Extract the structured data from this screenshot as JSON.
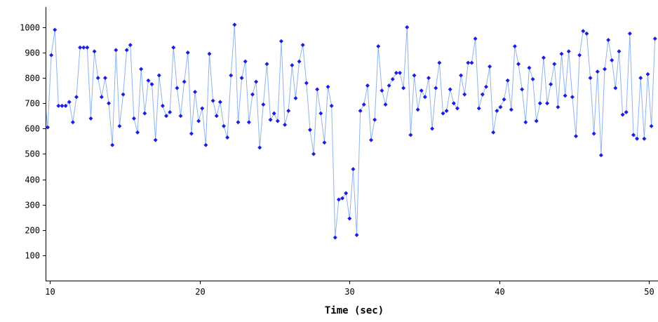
{
  "chart_data": {
    "type": "line",
    "xlabel": "Time (sec)",
    "x": [
      9.6,
      9.84,
      10.08,
      10.32,
      10.56,
      10.8,
      11.04,
      11.28,
      11.52,
      11.76,
      12.0,
      12.24,
      12.48,
      12.72,
      12.96,
      13.2,
      13.44,
      13.68,
      13.92,
      14.16,
      14.4,
      14.64,
      14.88,
      15.12,
      15.36,
      15.6,
      15.84,
      16.08,
      16.32,
      16.56,
      16.8,
      17.04,
      17.28,
      17.52,
      17.76,
      18.0,
      18.24,
      18.48,
      18.72,
      18.96,
      19.2,
      19.44,
      19.68,
      19.92,
      20.16,
      20.4,
      20.64,
      20.88,
      21.12,
      21.36,
      21.6,
      21.84,
      22.08,
      22.32,
      22.56,
      22.8,
      23.04,
      23.28,
      23.52,
      23.76,
      24.0,
      24.24,
      24.48,
      24.72,
      24.96,
      25.2,
      25.44,
      25.68,
      25.92,
      26.16,
      26.4,
      26.64,
      26.88,
      27.12,
      27.36,
      27.6,
      27.84,
      28.08,
      28.32,
      28.56,
      28.8,
      29.04,
      29.28,
      29.52,
      29.76,
      30.0,
      30.24,
      30.48,
      30.72,
      30.96,
      31.2,
      31.44,
      31.68,
      31.92,
      32.16,
      32.4,
      32.64,
      32.88,
      33.12,
      33.36,
      33.6,
      33.84,
      34.08,
      34.32,
      34.56,
      34.8,
      35.04,
      35.28,
      35.52,
      35.76,
      36.0,
      36.24,
      36.48,
      36.72,
      36.96,
      37.2,
      37.44,
      37.68,
      37.92,
      38.16,
      38.4,
      38.64,
      38.88,
      39.12,
      39.36,
      39.6,
      39.84,
      40.08,
      40.32,
      40.56,
      40.8,
      41.04,
      41.28,
      41.52,
      41.76,
      42.0,
      42.24,
      42.48,
      42.72,
      42.96,
      43.2,
      43.44,
      43.68,
      43.92,
      44.16,
      44.4,
      44.64,
      44.88,
      45.12,
      45.36,
      45.6,
      45.84,
      46.08,
      46.32,
      46.56,
      46.8,
      47.04,
      47.28,
      47.52,
      47.76,
      48.0,
      48.24,
      48.48,
      48.72,
      48.96,
      49.2,
      49.44,
      49.68,
      49.92,
      50.16,
      50.4
    ],
    "series": [
      {
        "color": "#8fb4ec",
        "marker_color": "#1c1ce8",
        "values": [
          740,
          605,
          890,
          990,
          690,
          690,
          690,
          705,
          625,
          725,
          920,
          920,
          920,
          640,
          905,
          800,
          725,
          800,
          700,
          535,
          910,
          610,
          735,
          910,
          930,
          640,
          585,
          835,
          660,
          790,
          775,
          555,
          810,
          690,
          650,
          665,
          920,
          760,
          650,
          785,
          900,
          580,
          745,
          630,
          680,
          535,
          895,
          710,
          650,
          705,
          610,
          565,
          810,
          1010,
          625,
          800,
          865,
          625,
          735,
          785,
          525,
          695,
          855,
          635,
          660,
          630,
          945,
          615,
          670,
          850,
          720,
          865,
          930,
          780,
          595,
          500,
          755,
          660,
          545,
          765,
          690,
          170,
          320,
          325,
          345,
          245,
          440,
          180,
          670,
          695,
          770,
          555,
          635,
          925,
          750,
          695,
          770,
          795,
          820,
          820,
          760,
          1000,
          575,
          810,
          675,
          750,
          725,
          800,
          600,
          760,
          860,
          660,
          670,
          755,
          700,
          680,
          810,
          735,
          860,
          860,
          955,
          680,
          735,
          765,
          845,
          585,
          670,
          685,
          715,
          790,
          675,
          925,
          855,
          755,
          625,
          840,
          795,
          630,
          700,
          880,
          700,
          775,
          855,
          685,
          895,
          730,
          905,
          725,
          570,
          890,
          985,
          975,
          800,
          580,
          825,
          495,
          835,
          950,
          870,
          760,
          905,
          655,
          665,
          975,
          575,
          560,
          800,
          560,
          815,
          610,
          955
        ]
      }
    ],
    "xlim": [
      9.7,
      50.6
    ],
    "xticks": [
      10,
      20,
      30,
      40,
      50
    ],
    "ylim": [
      0,
      1080
    ],
    "yticks": [
      100,
      200,
      300,
      400,
      500,
      600,
      700,
      800,
      900,
      1000
    ],
    "grid": false
  }
}
